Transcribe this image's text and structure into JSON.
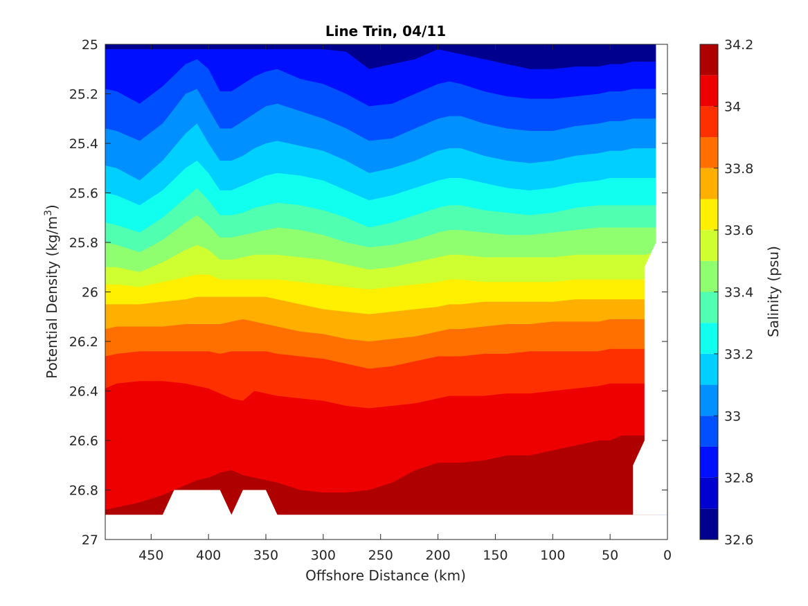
{
  "chart_data": {
    "type": "contour",
    "title": "Line Trin, 04/11",
    "xlabel": "Offshore Distance (km)",
    "ylabel": "Potential Density (kg/m",
    "ylabel_superscript": "3",
    "ylabel_suffix": ")",
    "x_reversed": true,
    "xlim": [
      0,
      490
    ],
    "ylim": [
      25,
      27
    ],
    "y_reversed": true,
    "xticks": [
      450,
      400,
      350,
      300,
      250,
      200,
      150,
      100,
      50,
      0
    ],
    "yticks": [
      25,
      25.2,
      25.4,
      25.6,
      25.8,
      26,
      26.2,
      26.4,
      26.6,
      26.8,
      27
    ],
    "colorbar": {
      "label": "Salinity (psu)",
      "min": 32.6,
      "max": 34.2,
      "tick_values": [
        32.6,
        32.8,
        33,
        33.2,
        33.4,
        33.6,
        33.8,
        34,
        34.2
      ],
      "tick_labels": [
        "32.6",
        "32.8",
        "33",
        "33.2",
        "33.4",
        "33.6",
        "33.8",
        "34",
        "34.2"
      ],
      "levels": [
        32.6,
        32.7,
        32.8,
        32.9,
        33.0,
        33.1,
        33.2,
        33.3,
        33.4,
        33.5,
        33.6,
        33.7,
        33.8,
        33.9,
        34.0,
        34.1,
        34.2
      ],
      "colors": [
        "#00008f",
        "#0000cf",
        "#0010ff",
        "#0050ff",
        "#0090ff",
        "#00cfff",
        "#10ffef",
        "#50ffaf",
        "#8fff70",
        "#cfff30",
        "#ffef00",
        "#ffaf00",
        "#ff7000",
        "#ff3000",
        "#ef0000",
        "#af0000"
      ]
    },
    "contours": {
      "x": [
        490,
        480,
        460,
        440,
        420,
        410,
        400,
        390,
        380,
        370,
        360,
        350,
        340,
        320,
        300,
        280,
        260,
        240,
        220,
        200,
        190,
        180,
        160,
        140,
        120,
        100,
        80,
        60,
        50,
        40,
        30,
        20,
        10
      ],
      "isopycnals": [
        {
          "level": 32.8,
          "y": [
            25.02,
            25.02,
            25.02,
            25.02,
            25.02,
            25.02,
            25.02,
            25.02,
            25.02,
            25.02,
            25.02,
            25.02,
            25.02,
            25.02,
            25.02,
            25.03,
            25.1,
            25.08,
            25.06,
            25.02,
            25.03,
            25.04,
            25.06,
            25.08,
            25.1,
            25.1,
            25.09,
            25.09,
            25.08,
            25.08,
            25.07,
            25.07,
            25.07
          ]
        },
        {
          "level": 32.9,
          "y": [
            25.18,
            25.19,
            25.24,
            25.17,
            25.08,
            25.06,
            25.1,
            25.19,
            25.19,
            25.16,
            25.13,
            25.11,
            25.1,
            25.14,
            25.16,
            25.2,
            25.25,
            25.24,
            25.2,
            25.16,
            25.15,
            25.16,
            25.19,
            25.21,
            25.22,
            25.22,
            25.21,
            25.2,
            25.19,
            25.19,
            25.18,
            25.18,
            25.18
          ]
        },
        {
          "level": 33.0,
          "y": [
            25.34,
            25.35,
            25.39,
            25.32,
            25.2,
            25.18,
            25.26,
            25.34,
            25.34,
            25.31,
            25.28,
            25.25,
            25.24,
            25.27,
            25.3,
            25.34,
            25.39,
            25.38,
            25.34,
            25.3,
            25.29,
            25.29,
            25.32,
            25.34,
            25.35,
            25.35,
            25.33,
            25.32,
            25.31,
            25.31,
            25.3,
            25.3,
            25.3
          ]
        },
        {
          "level": 33.1,
          "y": [
            25.49,
            25.5,
            25.55,
            25.47,
            25.36,
            25.32,
            25.4,
            25.47,
            25.47,
            25.45,
            25.42,
            25.4,
            25.39,
            25.41,
            25.43,
            25.47,
            25.52,
            25.5,
            25.47,
            25.43,
            25.42,
            25.42,
            25.45,
            25.47,
            25.48,
            25.47,
            25.45,
            25.44,
            25.43,
            25.43,
            25.42,
            25.42,
            25.42
          ]
        },
        {
          "level": 33.2,
          "y": [
            25.6,
            25.61,
            25.65,
            25.59,
            25.5,
            25.47,
            25.52,
            25.59,
            25.59,
            25.57,
            25.55,
            25.53,
            25.52,
            25.53,
            25.55,
            25.59,
            25.63,
            25.61,
            25.58,
            25.55,
            25.54,
            25.54,
            25.56,
            25.58,
            25.59,
            25.58,
            25.56,
            25.55,
            25.54,
            25.54,
            25.54,
            25.54,
            25.54
          ]
        },
        {
          "level": 33.3,
          "y": [
            25.72,
            25.73,
            25.76,
            25.7,
            25.62,
            25.58,
            25.63,
            25.69,
            25.69,
            25.68,
            25.66,
            25.65,
            25.64,
            25.65,
            25.67,
            25.7,
            25.74,
            25.72,
            25.69,
            25.66,
            25.65,
            25.65,
            25.67,
            25.68,
            25.69,
            25.68,
            25.66,
            25.65,
            25.65,
            25.65,
            25.65,
            25.65,
            25.65
          ]
        },
        {
          "level": 33.4,
          "y": [
            25.8,
            25.81,
            25.84,
            25.79,
            25.72,
            25.69,
            25.73,
            25.78,
            25.78,
            25.77,
            25.76,
            25.75,
            25.74,
            25.75,
            25.77,
            25.8,
            25.82,
            25.81,
            25.79,
            25.76,
            25.75,
            25.75,
            25.76,
            25.77,
            25.77,
            25.76,
            25.75,
            25.74,
            25.74,
            25.74,
            25.74,
            25.74,
            25.74
          ]
        },
        {
          "level": 33.5,
          "y": [
            25.9,
            25.9,
            25.92,
            25.88,
            25.83,
            25.81,
            25.83,
            25.87,
            25.87,
            25.86,
            25.85,
            25.85,
            25.85,
            25.86,
            25.87,
            25.89,
            25.91,
            25.9,
            25.88,
            25.86,
            25.85,
            25.85,
            25.86,
            25.86,
            25.86,
            25.86,
            25.85,
            25.85,
            25.85,
            25.85,
            25.85,
            25.85,
            25.84
          ]
        },
        {
          "level": 33.6,
          "y": [
            25.97,
            25.97,
            25.98,
            25.96,
            25.94,
            25.93,
            25.93,
            25.95,
            25.95,
            25.95,
            25.95,
            25.95,
            25.95,
            25.96,
            25.97,
            25.98,
            25.99,
            25.98,
            25.97,
            25.96,
            25.95,
            25.95,
            25.96,
            25.96,
            25.96,
            25.96,
            25.95,
            25.95,
            25.95,
            25.95,
            25.95,
            25.95,
            25.95
          ]
        },
        {
          "level": 33.7,
          "y": [
            26.05,
            26.05,
            26.05,
            26.04,
            26.03,
            26.02,
            26.02,
            26.02,
            26.02,
            26.02,
            26.02,
            26.02,
            26.03,
            26.05,
            26.07,
            26.08,
            26.09,
            26.08,
            26.07,
            26.06,
            26.05,
            26.05,
            26.04,
            26.04,
            26.04,
            26.04,
            26.03,
            26.03,
            26.03,
            26.03,
            26.03,
            26.03,
            26.03
          ]
        },
        {
          "level": 33.8,
          "y": [
            26.15,
            26.14,
            26.14,
            26.14,
            26.13,
            26.13,
            26.13,
            26.13,
            26.12,
            26.11,
            26.12,
            26.13,
            26.14,
            26.16,
            26.17,
            26.19,
            26.2,
            26.19,
            26.18,
            26.16,
            26.15,
            26.15,
            26.14,
            26.13,
            26.13,
            26.12,
            26.12,
            26.12,
            26.11,
            26.11,
            26.11,
            26.11,
            26.11
          ]
        },
        {
          "level": 33.9,
          "y": [
            26.26,
            26.25,
            26.24,
            26.24,
            26.24,
            26.24,
            26.24,
            26.25,
            26.24,
            26.24,
            26.24,
            26.24,
            26.25,
            26.26,
            26.27,
            26.29,
            26.31,
            26.3,
            26.28,
            26.26,
            26.26,
            26.26,
            26.25,
            26.25,
            26.24,
            26.24,
            26.24,
            26.24,
            26.23,
            26.23,
            26.23,
            26.23,
            26.23
          ]
        },
        {
          "level": 34.0,
          "y": [
            26.39,
            26.37,
            26.36,
            26.36,
            26.37,
            26.38,
            26.39,
            26.41,
            26.43,
            26.44,
            26.4,
            26.41,
            26.42,
            26.43,
            26.44,
            26.46,
            26.47,
            26.46,
            26.45,
            26.43,
            26.42,
            26.42,
            26.42,
            26.41,
            26.41,
            26.4,
            26.39,
            26.38,
            26.37,
            26.37,
            26.37,
            26.37,
            26.37
          ]
        },
        {
          "level": 34.1,
          "y": [
            26.88,
            26.87,
            26.85,
            26.82,
            26.78,
            26.76,
            26.75,
            26.73,
            26.72,
            26.74,
            26.75,
            26.76,
            26.77,
            26.8,
            26.81,
            26.81,
            26.8,
            26.77,
            26.72,
            26.69,
            26.69,
            26.69,
            26.68,
            26.66,
            26.66,
            26.64,
            26.62,
            26.6,
            26.6,
            26.58,
            26.58,
            26.58,
            26.58
          ]
        },
        {
          "level": 34.2,
          "y": [
            27.0,
            27.0,
            27.0,
            27.0,
            27.0,
            27.0,
            27.0,
            27.0,
            27.0,
            27.0,
            27.0,
            27.0,
            27.0,
            27.0,
            27.0,
            27.0,
            27.0,
            27.0,
            27.0,
            27.0,
            27.0,
            27.0,
            27.0,
            27.0,
            27.0,
            27.0,
            26.9,
            26.87,
            26.86,
            26.86,
            26.86,
            26.86,
            26.86
          ]
        }
      ]
    },
    "no_data_regions": [
      {
        "name": "bottom-gap",
        "points": [
          [
            490,
            26.9
          ],
          [
            440,
            26.9
          ],
          [
            430,
            26.8
          ],
          [
            390,
            26.8
          ],
          [
            380,
            26.9
          ],
          [
            370,
            26.8
          ],
          [
            350,
            26.8
          ],
          [
            340,
            26.9
          ],
          [
            0,
            26.9
          ],
          [
            0,
            27
          ],
          [
            490,
            27
          ]
        ]
      },
      {
        "name": "coast-gap",
        "points": [
          [
            10,
            25
          ],
          [
            0,
            25
          ],
          [
            0,
            26.9
          ],
          [
            30,
            26.9
          ],
          [
            30,
            26.7
          ],
          [
            20,
            26.6
          ],
          [
            20,
            25.9
          ],
          [
            10,
            25.8
          ]
        ]
      }
    ]
  }
}
